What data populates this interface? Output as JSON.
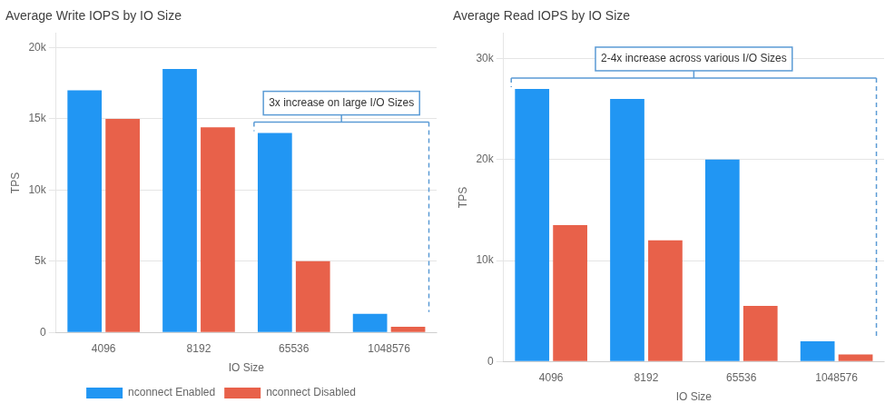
{
  "chart_data": [
    {
      "type": "bar",
      "title": "Average Write IOPS by IO Size",
      "xlabel": "IO Size",
      "ylabel": "TPS",
      "categories": [
        "4096",
        "8192",
        "65536",
        "1048576"
      ],
      "series": [
        {
          "name": "nconnect Enabled",
          "color": "#2196F3",
          "values": [
            17000,
            18500,
            14000,
            1300
          ]
        },
        {
          "name": "nconnect Disabled",
          "color": "#E8614A",
          "values": [
            15000,
            14400,
            5000,
            400
          ]
        }
      ],
      "ylim": [
        0,
        21000
      ],
      "yticks": [
        0,
        {
          "value": 5000,
          "label": "5k"
        },
        {
          "value": 10000,
          "label": "10k"
        },
        {
          "value": 15000,
          "label": "15k"
        },
        {
          "value": 20000,
          "label": "20k"
        }
      ],
      "grid": true,
      "legend": "bottom",
      "annotations": [
        {
          "text": "3x increase on large I/O Sizes",
          "categories": [
            "65536",
            "1048576"
          ]
        }
      ]
    },
    {
      "type": "bar",
      "title": "Average Read IOPS by IO Size",
      "xlabel": "IO Size",
      "ylabel": "TPS",
      "categories": [
        "4096",
        "8192",
        "65536",
        "1048576"
      ],
      "series": [
        {
          "name": "nconnect Enabled",
          "color": "#2196F3",
          "values": [
            27000,
            26000,
            20000,
            2000
          ]
        },
        {
          "name": "nconnect Disabled",
          "color": "#E8614A",
          "values": [
            13500,
            12000,
            5500,
            700
          ]
        }
      ],
      "ylim": [
        0,
        32500
      ],
      "yticks": [
        0,
        {
          "value": 10000,
          "label": "10k"
        },
        {
          "value": 20000,
          "label": "20k"
        },
        {
          "value": 30000,
          "label": "30k"
        }
      ],
      "grid": true,
      "annotations": [
        {
          "text": "2-4x increase across various I/O Sizes",
          "categories": [
            "4096",
            "1048576"
          ]
        }
      ]
    }
  ]
}
